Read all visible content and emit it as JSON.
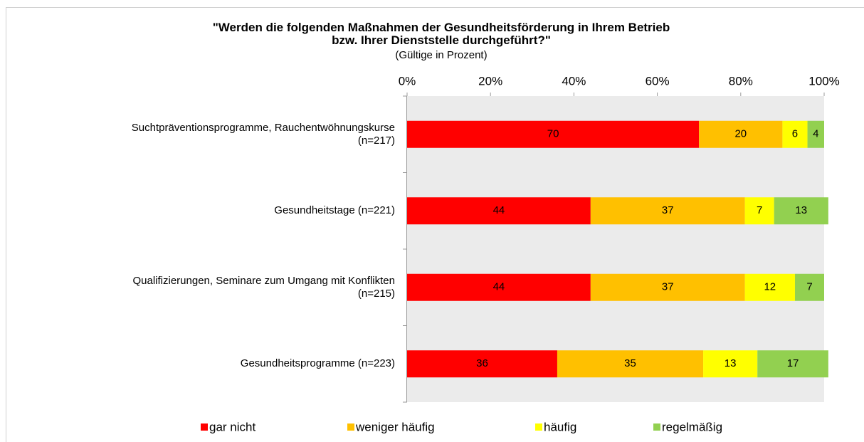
{
  "chart_data": {
    "type": "stacked_barh",
    "title": "\"Werden die folgenden Maßnahmen der Gesundheitsförderung in Ihrem Betrieb\nbzw. Ihrer Dienststelle durchgeführt?\"",
    "subtitle": "(Gültige in Prozent)",
    "categories": [
      "Suchtpräventionsprogramme, Rauchentwöhnungskurse\n(n=217)",
      "Gesundheitstage (n=221)",
      "Qualifizierungen, Seminare zum Umgang mit Konflikten\n(n=215)",
      "Gesundheitsprogramme (n=223)"
    ],
    "series": [
      {
        "name": "gar nicht",
        "color": "#ff0000",
        "values": [
          70,
          44,
          44,
          36
        ]
      },
      {
        "name": "weniger häufig",
        "color": "#ffc000",
        "values": [
          20,
          37,
          37,
          35
        ]
      },
      {
        "name": "häufig",
        "color": "#ffff00",
        "values": [
          6,
          7,
          12,
          13
        ]
      },
      {
        "name": "regelmäßig",
        "color": "#92d050",
        "values": [
          4,
          13,
          7,
          17
        ]
      }
    ],
    "xlim": [
      0,
      100
    ],
    "xticks": [
      {
        "value": 0,
        "label": "0%"
      },
      {
        "value": 20,
        "label": "20%"
      },
      {
        "value": 40,
        "label": "40%"
      },
      {
        "value": 60,
        "label": "60%"
      },
      {
        "value": 80,
        "label": "80%"
      },
      {
        "value": 100,
        "label": "100%"
      }
    ],
    "legend": "bottom"
  }
}
